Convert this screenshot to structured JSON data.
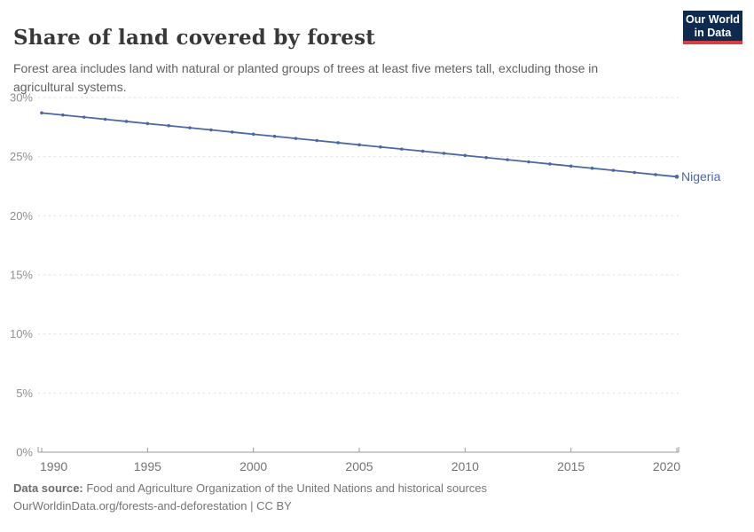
{
  "header": {
    "title": "Share of land covered by forest",
    "subtitle": "Forest area includes land with natural or planted groups of trees at least five meters tall, excluding those in agricultural systems."
  },
  "logo": {
    "line1": "Our World",
    "line2": "in Data"
  },
  "theme": {
    "title_color": "#383838",
    "subtitle_color": "#616161",
    "footer_color": "#757575",
    "logo_bg": "#0e2a4e",
    "logo_accent": "#d93d3e",
    "grid_color": "#dedede",
    "axis_color": "#9a9a9a",
    "ytick_label_color": "#8f8f8f",
    "xtick_label_color": "#737373",
    "line_color": "#4a69a2"
  },
  "chart_data": {
    "type": "line",
    "title": "Share of land covered by forest",
    "y_unit": "%",
    "xlim": [
      1990,
      2020
    ],
    "ylim": [
      0,
      30
    ],
    "xticks": [
      1990,
      1995,
      2000,
      2005,
      2010,
      2015,
      2020
    ],
    "yticks": [
      0,
      5,
      10,
      15,
      20,
      25,
      30
    ],
    "grid": "horizontal-dashed",
    "legend": "end-of-line-label",
    "point_markers": true,
    "series": [
      {
        "name": "Nigeria",
        "color": "#4a69a2",
        "x": [
          1990,
          1991,
          1992,
          1993,
          1994,
          1995,
          1996,
          1997,
          1998,
          1999,
          2000,
          2001,
          2002,
          2003,
          2004,
          2005,
          2006,
          2007,
          2008,
          2009,
          2010,
          2011,
          2012,
          2013,
          2014,
          2015,
          2016,
          2017,
          2018,
          2019,
          2020
        ],
        "values": [
          28.7,
          28.52,
          28.34,
          28.16,
          27.98,
          27.8,
          27.62,
          27.44,
          27.26,
          27.08,
          26.9,
          26.72,
          26.54,
          26.36,
          26.18,
          26.0,
          25.82,
          25.64,
          25.46,
          25.28,
          25.1,
          24.92,
          24.74,
          24.56,
          24.38,
          24.2,
          24.02,
          23.84,
          23.66,
          23.48,
          23.3
        ]
      }
    ]
  },
  "footer": {
    "source_label": "Data source:",
    "source_text": " Food and Agriculture Organization of the United Nations and historical sources",
    "link_line": "OurWorldinData.org/forests-and-deforestation | CC BY"
  }
}
